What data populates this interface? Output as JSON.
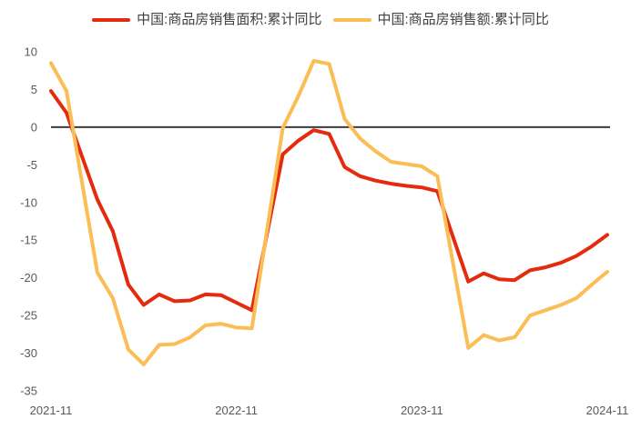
{
  "chart_data": {
    "type": "line",
    "title": "",
    "legend_position": "top",
    "grid": false,
    "background_color": "#ffffff",
    "zero_line_color": "#3c3c3c",
    "axis_label_color": "#595959",
    "y_axis": {
      "ticks": [
        10,
        5,
        0,
        -5,
        -10,
        -15,
        -20,
        -25,
        -30,
        -35
      ],
      "range": [
        -35,
        10
      ]
    },
    "x_axis": {
      "tick_labels": [
        "2021-11",
        "2022-11",
        "2023-11",
        "2024-11"
      ],
      "tick_month_offsets": [
        0,
        12,
        24,
        36
      ],
      "range_months": 36
    },
    "x": [
      "2021-11",
      "2021-12",
      "2022-02",
      "2022-03",
      "2022-04",
      "2022-05",
      "2022-06",
      "2022-07",
      "2022-08",
      "2022-09",
      "2022-10",
      "2022-11",
      "2022-12",
      "2023-02",
      "2023-03",
      "2023-04",
      "2023-05",
      "2023-06",
      "2023-07",
      "2023-08",
      "2023-09",
      "2023-10",
      "2023-11",
      "2023-12",
      "2024-02",
      "2024-03",
      "2024-04",
      "2024-05",
      "2024-06",
      "2024-07",
      "2024-08",
      "2024-09",
      "2024-10",
      "2024-11"
    ],
    "month_offsets": [
      0,
      1,
      3,
      4,
      5,
      6,
      7,
      8,
      9,
      10,
      11,
      12,
      13,
      15,
      16,
      17,
      18,
      19,
      20,
      21,
      22,
      23,
      24,
      25,
      27,
      28,
      29,
      30,
      31,
      32,
      33,
      34,
      35,
      36
    ],
    "series": [
      {
        "name": "中国:商品房销售面积:累计同比",
        "color": "#e52b0d",
        "values": [
          4.8,
          1.9,
          -9.6,
          -13.8,
          -20.9,
          -23.6,
          -22.2,
          -23.1,
          -23.0,
          -22.2,
          -22.3,
          -23.3,
          -24.3,
          -3.6,
          -1.8,
          -0.4,
          -0.9,
          -5.3,
          -6.5,
          -7.1,
          -7.5,
          -7.8,
          -8.0,
          -8.5,
          -20.5,
          -19.4,
          -20.2,
          -20.3,
          -19.0,
          -18.6,
          -18.0,
          -17.1,
          -15.8,
          -14.3
        ]
      },
      {
        "name": "中国:商品房销售额:累计同比",
        "color": "#fbbd55",
        "values": [
          8.5,
          4.8,
          -19.3,
          -22.7,
          -29.5,
          -31.5,
          -28.9,
          -28.8,
          -27.9,
          -26.3,
          -26.1,
          -26.6,
          -26.7,
          -0.1,
          4.1,
          8.8,
          8.4,
          1.1,
          -1.5,
          -3.2,
          -4.6,
          -4.9,
          -5.2,
          -6.5,
          -29.3,
          -27.6,
          -28.3,
          -27.9,
          -25.0,
          -24.3,
          -23.6,
          -22.7,
          -20.9,
          -19.2
        ]
      }
    ]
  }
}
